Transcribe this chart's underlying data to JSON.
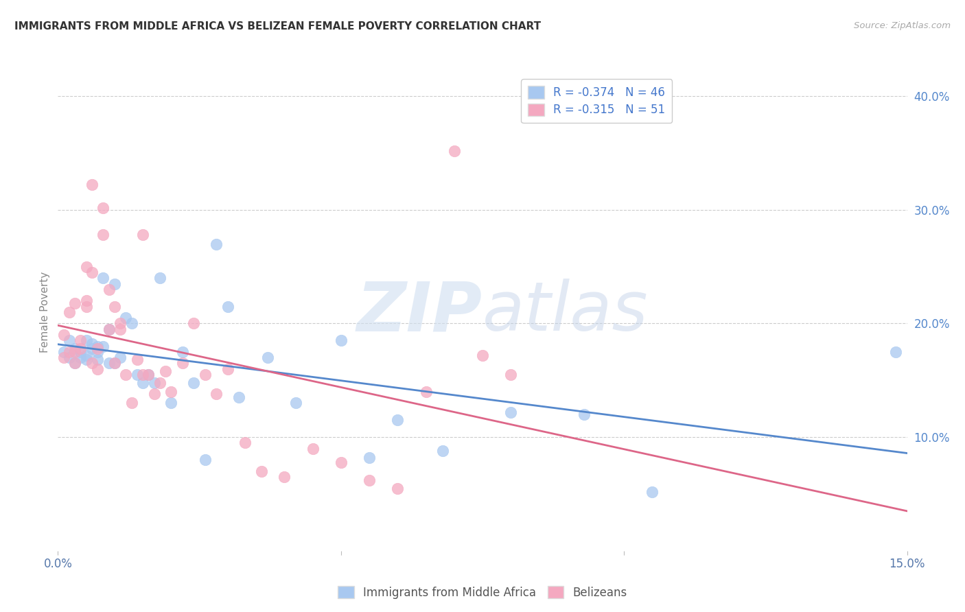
{
  "title": "IMMIGRANTS FROM MIDDLE AFRICA VS BELIZEAN FEMALE POVERTY CORRELATION CHART",
  "source": "Source: ZipAtlas.com",
  "ylabel": "Female Poverty",
  "xlim": [
    0.0,
    0.15
  ],
  "ylim": [
    0.0,
    0.42
  ],
  "legend_label_blue": "R = -0.374   N = 46",
  "legend_label_pink": "R = -0.315   N = 51",
  "legend_label_blue_series": "Immigrants from Middle Africa",
  "legend_label_pink_series": "Belizeans",
  "color_blue": "#a8c8f0",
  "color_pink": "#f4a8c0",
  "color_blue_line": "#5588cc",
  "color_pink_line": "#dd6688",
  "watermark_zip": "ZIP",
  "watermark_atlas": "atlas",
  "blue_scatter_x": [
    0.001,
    0.002,
    0.002,
    0.003,
    0.003,
    0.004,
    0.004,
    0.005,
    0.005,
    0.005,
    0.006,
    0.006,
    0.007,
    0.007,
    0.007,
    0.008,
    0.008,
    0.009,
    0.009,
    0.01,
    0.01,
    0.011,
    0.012,
    0.013,
    0.014,
    0.015,
    0.016,
    0.017,
    0.018,
    0.02,
    0.022,
    0.024,
    0.026,
    0.028,
    0.03,
    0.032,
    0.037,
    0.042,
    0.05,
    0.055,
    0.06,
    0.068,
    0.08,
    0.093,
    0.105,
    0.148
  ],
  "blue_scatter_y": [
    0.175,
    0.17,
    0.185,
    0.165,
    0.178,
    0.17,
    0.175,
    0.168,
    0.185,
    0.172,
    0.178,
    0.182,
    0.168,
    0.175,
    0.18,
    0.24,
    0.18,
    0.195,
    0.165,
    0.235,
    0.165,
    0.17,
    0.205,
    0.2,
    0.155,
    0.148,
    0.155,
    0.148,
    0.24,
    0.13,
    0.175,
    0.148,
    0.08,
    0.27,
    0.215,
    0.135,
    0.17,
    0.13,
    0.185,
    0.082,
    0.115,
    0.088,
    0.122,
    0.12,
    0.052,
    0.175
  ],
  "pink_scatter_x": [
    0.001,
    0.001,
    0.002,
    0.002,
    0.003,
    0.003,
    0.003,
    0.004,
    0.004,
    0.005,
    0.005,
    0.005,
    0.006,
    0.006,
    0.006,
    0.007,
    0.007,
    0.008,
    0.008,
    0.009,
    0.009,
    0.01,
    0.01,
    0.011,
    0.011,
    0.012,
    0.013,
    0.014,
    0.015,
    0.015,
    0.016,
    0.017,
    0.018,
    0.019,
    0.02,
    0.022,
    0.024,
    0.026,
    0.028,
    0.03,
    0.033,
    0.036,
    0.04,
    0.045,
    0.05,
    0.055,
    0.06,
    0.065,
    0.07,
    0.075,
    0.08
  ],
  "pink_scatter_y": [
    0.17,
    0.19,
    0.175,
    0.21,
    0.175,
    0.218,
    0.165,
    0.185,
    0.178,
    0.215,
    0.25,
    0.22,
    0.245,
    0.322,
    0.165,
    0.178,
    0.16,
    0.278,
    0.302,
    0.195,
    0.23,
    0.165,
    0.215,
    0.2,
    0.195,
    0.155,
    0.13,
    0.168,
    0.155,
    0.278,
    0.155,
    0.138,
    0.148,
    0.158,
    0.14,
    0.165,
    0.2,
    0.155,
    0.138,
    0.16,
    0.095,
    0.07,
    0.065,
    0.09,
    0.078,
    0.062,
    0.055,
    0.14,
    0.352,
    0.172,
    0.155
  ],
  "background_color": "#ffffff",
  "grid_color": "#cccccc",
  "tick_color": "#aaaaaa"
}
